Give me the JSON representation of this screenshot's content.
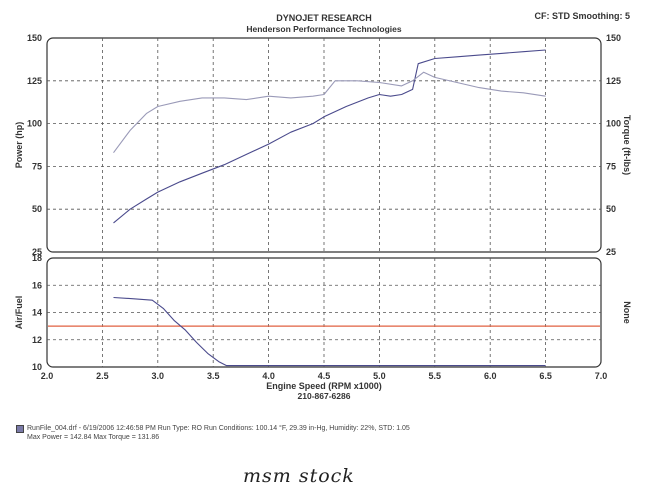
{
  "header": {
    "title": "DYNOJET RESEARCH",
    "subtitle": "Henderson Performance Technologies",
    "settings": "CF: STD  Smoothing: 5"
  },
  "chart_data": {
    "type": "line",
    "x_label": "Engine Speed (RPM x1000)",
    "x_subtitle": "210-867-6286",
    "x_ticks": [
      "2.0",
      "2.5",
      "3.0",
      "3.5",
      "4.0",
      "4.5",
      "5.0",
      "5.5",
      "6.0",
      "6.5",
      "7.0"
    ],
    "xlim": [
      2.0,
      7.0
    ],
    "grid": true,
    "top_panel": {
      "ylabel_left": "Power (hp)",
      "ylabel_right": "Torque (ft-lbs)",
      "ylim": [
        25,
        150
      ],
      "yticks": [
        "25",
        "50",
        "75",
        "100",
        "125",
        "150"
      ],
      "series": [
        {
          "color": "#4a4a8c",
          "x": [
            2.6,
            2.75,
            2.9,
            3.0,
            3.2,
            3.4,
            3.6,
            3.8,
            4.0,
            4.2,
            4.4,
            4.5,
            4.7,
            4.9,
            5.0,
            5.1,
            5.2,
            5.3,
            5.35,
            5.5,
            5.7,
            5.9,
            6.1,
            6.3,
            6.5
          ],
          "y": [
            42,
            50,
            56,
            60,
            66,
            71,
            76,
            82,
            88,
            95,
            100,
            104,
            110,
            115,
            117,
            116,
            117,
            120,
            135,
            138,
            139,
            140,
            141,
            142,
            143
          ]
        },
        {
          "color": "#9a9ab8",
          "x": [
            2.6,
            2.75,
            2.9,
            3.0,
            3.2,
            3.4,
            3.6,
            3.8,
            4.0,
            4.2,
            4.4,
            4.5,
            4.6,
            4.8,
            5.0,
            5.2,
            5.3,
            5.4,
            5.5,
            5.7,
            5.9,
            6.1,
            6.3,
            6.5
          ],
          "y": [
            83,
            96,
            106,
            110,
            113,
            115,
            115,
            114,
            116,
            115,
            116,
            117,
            125,
            125,
            124,
            122,
            125,
            130,
            127,
            124,
            121,
            119,
            118,
            116
          ]
        }
      ]
    },
    "bottom_panel": {
      "ylabel_left": "Air/Fuel",
      "ylabel_right": "None",
      "ylim": [
        10,
        18
      ],
      "yticks": [
        "10",
        "12",
        "14",
        "16",
        "18"
      ],
      "reference_line": {
        "y": 13.0,
        "color": "#e06040"
      },
      "series": [
        {
          "color": "#4a4a8c",
          "x": [
            2.6,
            2.8,
            2.95,
            3.05,
            3.15,
            3.25,
            3.35,
            3.45,
            3.55,
            3.62,
            3.7,
            4.0,
            4.5,
            5.0,
            5.5,
            6.0,
            6.5
          ],
          "y": [
            15.1,
            15.0,
            14.9,
            14.3,
            13.4,
            12.7,
            11.8,
            11.0,
            10.4,
            10.1,
            10.1,
            10.1,
            10.1,
            10.1,
            10.1,
            10.1,
            10.1
          ]
        }
      ]
    }
  },
  "footer": {
    "line1": "RunFile_004.drf - 6/19/2006 12:46:58 PM  Run Type: RO  Run Conditions: 100.14 °F, 29.39 in-Hg,  Humidity:  22%, STD: 1.05",
    "line2": "Max Power = 142.84  Max Torque = 131.86"
  },
  "note": "msm stock"
}
